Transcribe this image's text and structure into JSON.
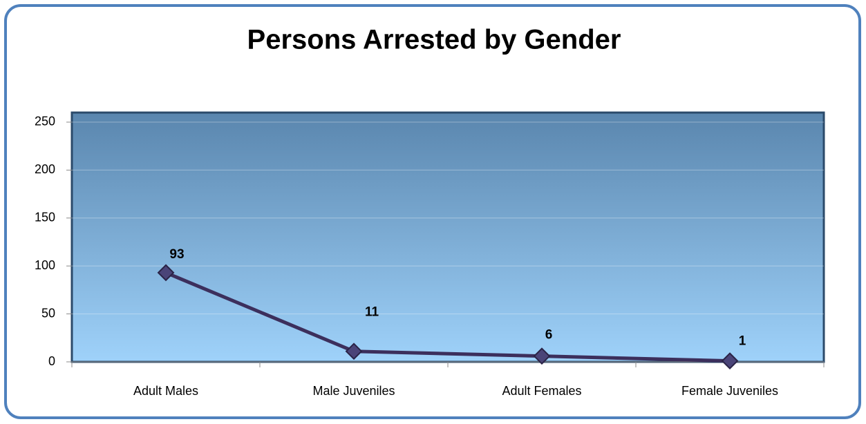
{
  "chart_data": {
    "type": "line",
    "title": "Persons Arrested by Gender",
    "categories": [
      "Adult  Males",
      "Male Juveniles",
      "Adult Females",
      "Female Juveniles"
    ],
    "series": [
      {
        "name": "Persons Arrested",
        "color": "#3c2f5c",
        "values": [
          93,
          11,
          6,
          1
        ]
      }
    ],
    "ylim": [
      0,
      260
    ],
    "yticks": [
      0,
      50,
      100,
      150,
      200,
      250
    ],
    "grid": true
  }
}
